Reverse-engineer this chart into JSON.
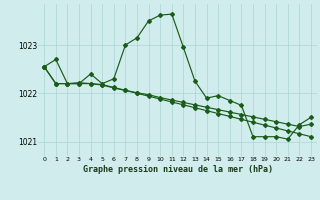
{
  "title": "Graphe pression niveau de la mer (hPa)",
  "background_color": "#d0ecec",
  "grid_color": "#aad4d4",
  "line_color": "#1a5c1a",
  "marker_color": "#1a5c1a",
  "x": [
    0,
    1,
    2,
    3,
    4,
    5,
    6,
    7,
    8,
    9,
    10,
    11,
    12,
    13,
    14,
    15,
    16,
    17,
    18,
    19,
    20,
    21,
    22,
    23
  ],
  "series1": [
    1022.55,
    1022.7,
    1022.2,
    1022.2,
    1022.4,
    1022.2,
    1022.3,
    1023.0,
    1023.15,
    1023.5,
    1023.62,
    1023.64,
    1022.95,
    1022.25,
    1021.9,
    1021.95,
    1021.85,
    1021.75,
    1021.1,
    1021.1,
    1021.1,
    1021.05,
    1021.35,
    1021.5
  ],
  "series2": [
    1022.55,
    1022.2,
    1022.2,
    1022.2,
    1022.2,
    1022.18,
    1022.12,
    1022.06,
    1022.0,
    1021.94,
    1021.88,
    1021.82,
    1021.76,
    1021.7,
    1021.64,
    1021.58,
    1021.52,
    1021.46,
    1021.4,
    1021.34,
    1021.28,
    1021.22,
    1021.16,
    1021.1
  ],
  "series3": [
    1022.55,
    1022.2,
    1022.2,
    1022.22,
    1022.2,
    1022.17,
    1022.11,
    1022.06,
    1022.01,
    1021.97,
    1021.91,
    1021.86,
    1021.81,
    1021.76,
    1021.71,
    1021.66,
    1021.61,
    1021.56,
    1021.51,
    1021.46,
    1021.41,
    1021.36,
    1021.31,
    1021.36
  ],
  "ylim": [
    1020.7,
    1023.85
  ],
  "yticks": [
    1021,
    1022,
    1023
  ],
  "xticks": [
    0,
    1,
    2,
    3,
    4,
    5,
    6,
    7,
    8,
    9,
    10,
    11,
    12,
    13,
    14,
    15,
    16,
    17,
    18,
    19,
    20,
    21,
    22,
    23
  ],
  "xlim": [
    -0.5,
    23.5
  ]
}
